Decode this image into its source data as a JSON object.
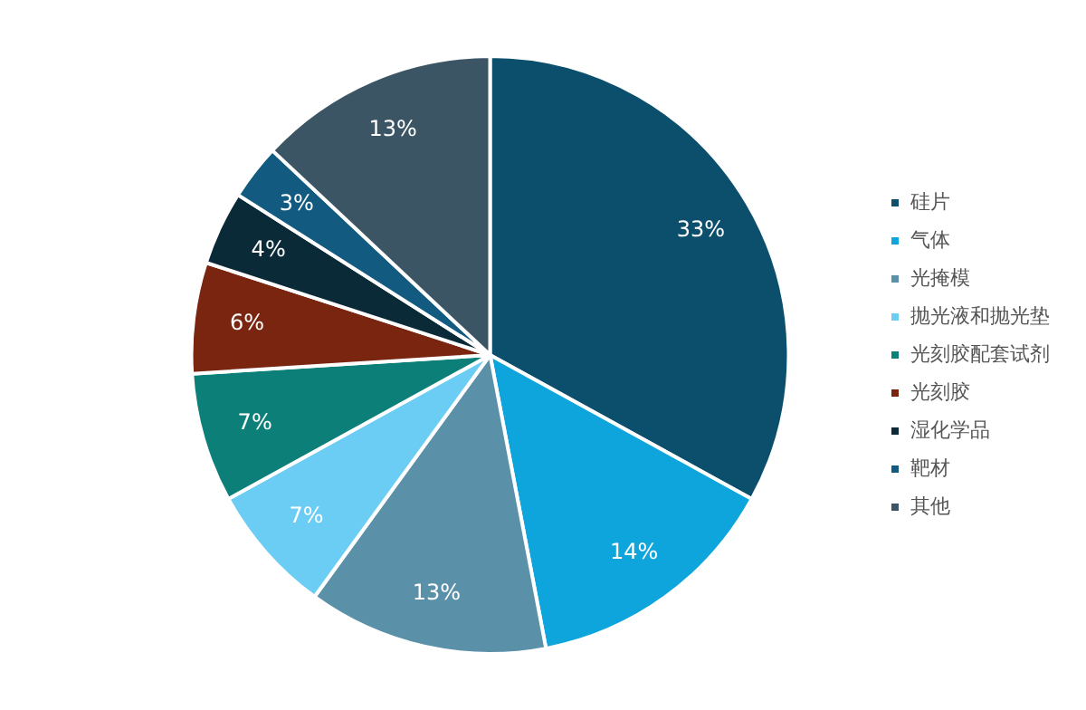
{
  "chart_data": {
    "type": "pie",
    "categories": [
      "硅片",
      "气体",
      "光掩模",
      "抛光液和抛光垫",
      "光刻胶配套试剂",
      "光刻胶",
      "湿化学品",
      "靶材",
      "其他"
    ],
    "values": [
      33,
      14,
      13,
      7,
      7,
      6,
      4,
      3,
      13
    ],
    "value_labels": [
      "33%",
      "14%",
      "13%",
      "7%",
      "7%",
      "6%",
      "4%",
      "3%",
      "13%"
    ],
    "colors": [
      "#0b4f6c",
      "#0ea5dc",
      "#5a90a8",
      "#6ccdf4",
      "#0c8078",
      "#7a2510",
      "#0b2a38",
      "#125a80",
      "#3b5564"
    ],
    "legend": "right"
  }
}
